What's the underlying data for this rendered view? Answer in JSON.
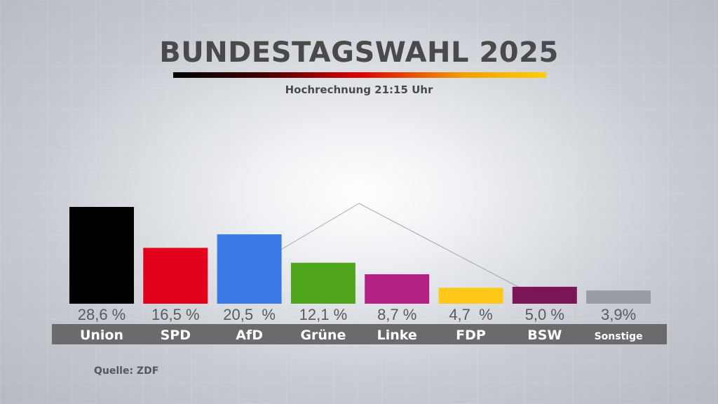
{
  "title": "BUNDESTAGSWAHL 2025",
  "subtitle": "Hochrechnung 21:15 Uhr",
  "source": "Quelle: ZDF",
  "chart_data": {
    "type": "bar",
    "categories": [
      "Union",
      "SPD",
      "AfD",
      "Grüne",
      "Linke",
      "FDP",
      "BSW",
      "Sonstige"
    ],
    "values": [
      28.6,
      16.5,
      20.5,
      12.1,
      8.7,
      4.7,
      5.0,
      3.9
    ],
    "value_labels": [
      "28,6 %",
      "16,5 %",
      "20,5  %",
      "12,1 %",
      "8,7 %",
      "4,7  %",
      "5,0 %",
      "3,9%"
    ],
    "colors": [
      "#000000",
      "#e3001b",
      "#3a7be8",
      "#4fa61c",
      "#b52084",
      "#ffc818",
      "#7a1556",
      "#9a9ca4"
    ],
    "title": "BUNDESTAGSWAHL 2025",
    "subtitle": "Hochrechnung 21:15 Uhr",
    "ylim": [
      0,
      30
    ],
    "grid": false,
    "legend": "none"
  }
}
